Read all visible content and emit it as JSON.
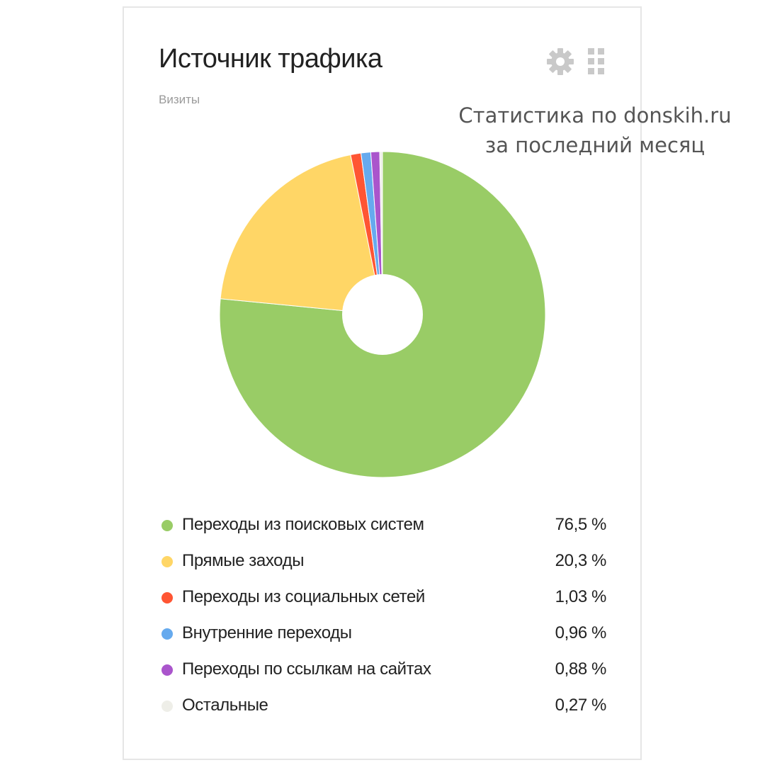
{
  "card": {
    "title": "Источник трафика",
    "subtitle": "Визиты",
    "settings_icon": "gear-icon",
    "grid_icon": "drag-grid-icon"
  },
  "overlay": {
    "line1": "Статистика по donskih.ru",
    "line2": "за последний месяц"
  },
  "chart_data": {
    "type": "pie",
    "donut": true,
    "start_angle": "12 o'clock",
    "direction": "clockwise",
    "slices": [
      {
        "label": "Переходы из поисковых систем",
        "value": 76.5,
        "display": "76,5 %",
        "color": "#99cc66"
      },
      {
        "label": "Прямые заходы",
        "value": 20.3,
        "display": "20,3 %",
        "color": "#ffd666"
      },
      {
        "label": "Переходы из социальных сетей",
        "value": 1.03,
        "display": "1,03 %",
        "color": "#ff5533"
      },
      {
        "label": "Внутренние переходы",
        "value": 0.96,
        "display": "0,96 %",
        "color": "#66aaee"
      },
      {
        "label": "Переходы по ссылкам на сайтах",
        "value": 0.88,
        "display": "0,88 %",
        "color": "#aa55cc"
      },
      {
        "label": "Остальные",
        "value": 0.27,
        "display": "0,27 %",
        "color": "#eeeee8"
      }
    ]
  }
}
